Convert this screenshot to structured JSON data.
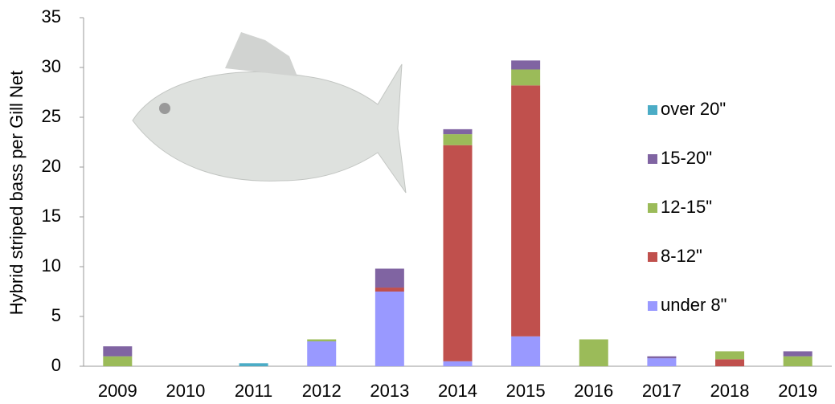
{
  "chart_data": {
    "type": "stacked-bar",
    "y_label": "Hybrid striped bass per Gill Net",
    "categories": [
      "2009",
      "2010",
      "2011",
      "2012",
      "2013",
      "2014",
      "2015",
      "2016",
      "2017",
      "2018",
      "2019"
    ],
    "series": [
      {
        "name": "under 8\"",
        "color": "#9999ff",
        "values": [
          0,
          0,
          0,
          2.5,
          7.5,
          0.5,
          3,
          0,
          0.8,
          0,
          0
        ]
      },
      {
        "name": "8-12\"",
        "color": "#c0504d",
        "values": [
          0,
          0,
          0,
          0,
          0.4,
          21.7,
          25.2,
          0,
          0,
          0.7,
          0
        ]
      },
      {
        "name": "12-15\"",
        "color": "#9bbb59",
        "values": [
          1,
          0,
          0,
          0.2,
          0,
          1.1,
          1.6,
          2.7,
          0,
          0.8,
          1
        ]
      },
      {
        "name": "15-20\"",
        "color": "#8064a2",
        "values": [
          1,
          0,
          0,
          0,
          1.9,
          0.5,
          0.9,
          0,
          0.2,
          0,
          0.5
        ]
      },
      {
        "name": "over 20\"",
        "color": "#4bacc6",
        "values": [
          0,
          0,
          0.3,
          0,
          0,
          0,
          0,
          0,
          0,
          0,
          0
        ]
      }
    ],
    "ylim": [
      0,
      35
    ],
    "yticks": [
      0,
      5,
      10,
      15,
      20,
      25,
      30,
      35
    ]
  }
}
